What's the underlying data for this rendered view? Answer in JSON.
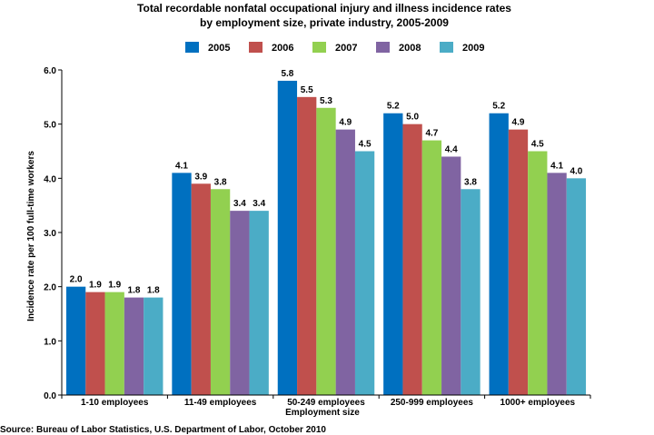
{
  "chart_data": {
    "type": "bar",
    "title_lines": [
      "Total recordable nonfatal occupational injury and illness incidence rates",
      "by employment size, private industry, 2005-2009"
    ],
    "xlabel": "Employment size",
    "ylabel": "Incidence rate per 100 full-time workers",
    "ylim": [
      0,
      6
    ],
    "yticks": [
      "0.0",
      "1.0",
      "2.0",
      "3.0",
      "4.0",
      "5.0",
      "6.0"
    ],
    "categories": [
      "1-10 employees",
      "11-49 employees",
      "50-249 employees",
      "250-999 employees",
      "1000+ employees"
    ],
    "series": [
      {
        "name": "2005",
        "color": "#0070c0",
        "values": [
          2.0,
          4.1,
          5.8,
          5.2,
          5.2
        ],
        "labels": [
          "2.0",
          "4.1",
          "5.8",
          "5.2",
          "5.2"
        ]
      },
      {
        "name": "2006",
        "color": "#c0504d",
        "values": [
          1.9,
          3.9,
          5.5,
          5.0,
          4.9
        ],
        "labels": [
          "1.9",
          "3.9",
          "5.5",
          "5.0",
          "4.9"
        ]
      },
      {
        "name": "2007",
        "color": "#92d050",
        "values": [
          1.9,
          3.8,
          5.3,
          4.7,
          4.5
        ],
        "labels": [
          "1.9",
          "3.8",
          "5.3",
          "4.7",
          "4.5"
        ]
      },
      {
        "name": "2008",
        "color": "#8064a2",
        "values": [
          1.8,
          3.4,
          4.9,
          4.4,
          4.1
        ],
        "labels": [
          "1.8",
          "3.4",
          "4.9",
          "4.4",
          "4.1"
        ]
      },
      {
        "name": "2009",
        "color": "#4bacc6",
        "values": [
          1.8,
          3.4,
          4.5,
          3.8,
          4.0
        ],
        "labels": [
          "1.8",
          "3.4",
          "4.5",
          "3.8",
          "4.0"
        ]
      }
    ],
    "legend_position": "top-center",
    "grid": false
  },
  "source": "Source:  Bureau of Labor Statistics, U.S. Department of Labor, October 2010"
}
